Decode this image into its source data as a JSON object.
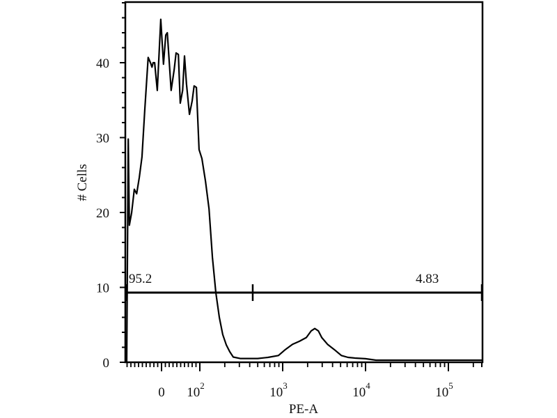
{
  "chart_data": {
    "type": "line",
    "title": "",
    "xlabel": "PE-A",
    "ylabel": "# Cells",
    "x_scale": "biexponential",
    "xlim": [
      -95,
      262144
    ],
    "ylim": [
      0,
      48
    ],
    "grid": false,
    "x_ticks": [
      {
        "value": 0,
        "base": "0",
        "exp": ""
      },
      {
        "value": 100,
        "base": "10",
        "exp": "2"
      },
      {
        "value": 1000,
        "base": "10",
        "exp": "3"
      },
      {
        "value": 10000,
        "base": "10",
        "exp": "4"
      },
      {
        "value": 100000,
        "base": "10",
        "exp": "5"
      }
    ],
    "y_ticks": [
      0,
      10,
      20,
      30,
      40
    ],
    "series": [
      {
        "color": "#000000",
        "points": [
          [
            -95,
            0
          ],
          [
            -87,
            29.8
          ],
          [
            -84,
            18.3
          ],
          [
            -78,
            20.0
          ],
          [
            -71,
            23.1
          ],
          [
            -65,
            22.5
          ],
          [
            -58,
            24.7
          ],
          [
            -51,
            27.4
          ],
          [
            -44,
            33.5
          ],
          [
            -35,
            40.7
          ],
          [
            -29,
            40.0
          ],
          [
            -25,
            39.4
          ],
          [
            -22,
            40.0
          ],
          [
            -18,
            40.0
          ],
          [
            -11,
            36.3
          ],
          [
            -2,
            45.8
          ],
          [
            5,
            39.8
          ],
          [
            11,
            43.7
          ],
          [
            15,
            44.0
          ],
          [
            25,
            36.3
          ],
          [
            33,
            39.1
          ],
          [
            38,
            41.3
          ],
          [
            44,
            41.1
          ],
          [
            49,
            34.6
          ],
          [
            55,
            36.3
          ],
          [
            60,
            40.9
          ],
          [
            65,
            37.2
          ],
          [
            73,
            33.1
          ],
          [
            80,
            34.9
          ],
          [
            85,
            36.9
          ],
          [
            91,
            36.7
          ],
          [
            98,
            28.4
          ],
          [
            106,
            27.2
          ],
          [
            117,
            24.2
          ],
          [
            129,
            20.5
          ],
          [
            142,
            14.0
          ],
          [
            156,
            9.3
          ],
          [
            172,
            6.0
          ],
          [
            189,
            3.7
          ],
          [
            209,
            2.3
          ],
          [
            230,
            1.4
          ],
          [
            253,
            0.7
          ],
          [
            307,
            0.5
          ],
          [
            499,
            0.5
          ],
          [
            665,
            0.65
          ],
          [
            889,
            0.9
          ],
          [
            1079,
            1.7
          ],
          [
            1313,
            2.4
          ],
          [
            1592,
            2.8
          ],
          [
            1932,
            3.3
          ],
          [
            2211,
            4.2
          ],
          [
            2442,
            4.5
          ],
          [
            2691,
            4.2
          ],
          [
            2962,
            3.3
          ],
          [
            3476,
            2.4
          ],
          [
            4187,
            1.7
          ],
          [
            5106,
            0.9
          ],
          [
            6154,
            0.65
          ],
          [
            7469,
            0.56
          ],
          [
            9990,
            0.47
          ],
          [
            13360,
            0.28
          ],
          [
            262144,
            0.28
          ]
        ]
      }
    ],
    "gates": {
      "y": 9.3,
      "start": -95,
      "divider": 435,
      "end": 262144,
      "left_label": "95.2",
      "right_label": "4.83"
    }
  }
}
